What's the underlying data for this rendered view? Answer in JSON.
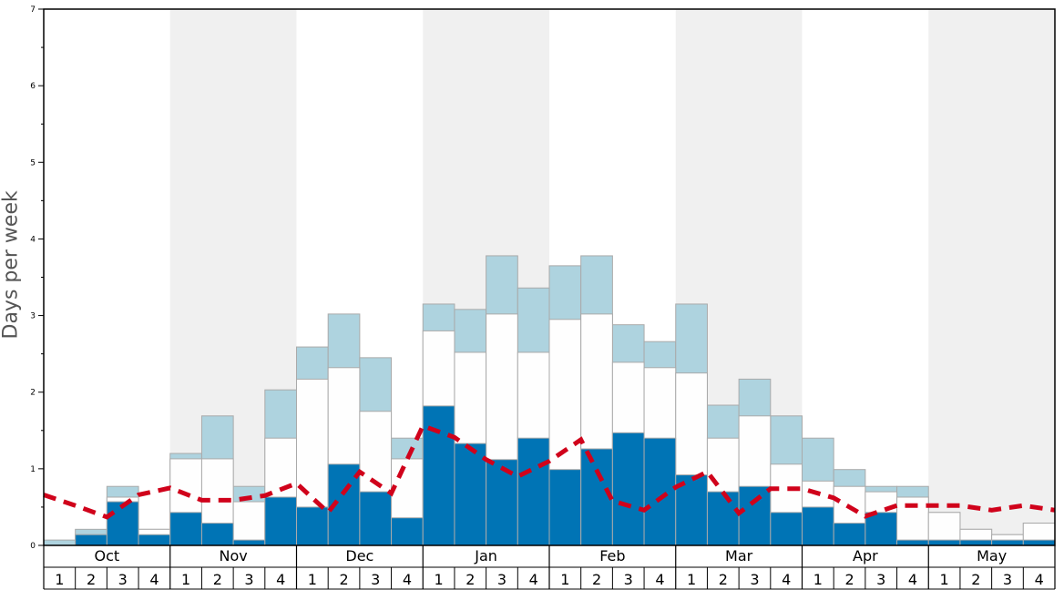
{
  "chart_data": {
    "type": "bar",
    "stacked": true,
    "title": "",
    "xlabel": "",
    "ylabel": "Days per week",
    "ylim": [
      0,
      7
    ],
    "yticks": [
      "0",
      "1",
      "2",
      "3",
      "4",
      "5",
      "6",
      "7"
    ],
    "months": [
      "Oct",
      "Nov",
      "Dec",
      "Jan",
      "Feb",
      "Mar",
      "Apr",
      "May"
    ],
    "weeks": [
      "1",
      "2",
      "3",
      "4"
    ],
    "shaded_months": [
      "Nov",
      "Jan",
      "Mar",
      "May"
    ],
    "series": [
      {
        "name": "dark",
        "color": "#0074b5",
        "values_cumulative_top": [
          0,
          0.14,
          0.57,
          0.14,
          0.43,
          0.29,
          0.07,
          0.63,
          0.5,
          1.06,
          0.7,
          0.36,
          1.82,
          1.33,
          1.12,
          1.4,
          0.99,
          1.26,
          1.47,
          1.4,
          0.92,
          0.7,
          0.77,
          0.43,
          0.5,
          0.29,
          0.43,
          0.07,
          0.07,
          0.07,
          0.07,
          0.07
        ]
      },
      {
        "name": "white",
        "color": "#fefefe",
        "values_cumulative_top": [
          0,
          0.14,
          0.63,
          0.21,
          1.13,
          1.13,
          0.57,
          1.4,
          2.17,
          2.32,
          1.75,
          1.13,
          2.8,
          2.52,
          3.02,
          2.52,
          2.95,
          3.02,
          2.39,
          2.32,
          2.25,
          1.4,
          1.69,
          1.06,
          0.84,
          0.77,
          0.7,
          0.63,
          0.43,
          0.21,
          0.14,
          0.29
        ]
      },
      {
        "name": "light",
        "color": "#aed3df",
        "values_cumulative_top": [
          0.07,
          0.21,
          0.77,
          0.21,
          1.2,
          1.69,
          0.77,
          2.03,
          2.59,
          3.02,
          2.45,
          1.4,
          3.15,
          3.08,
          3.78,
          3.36,
          3.65,
          3.78,
          2.88,
          2.66,
          3.15,
          1.83,
          2.17,
          1.69,
          1.4,
          0.99,
          0.77,
          0.77,
          0.43,
          0.21,
          0.14,
          0.29
        ]
      }
    ],
    "average_line": {
      "color": "#d0021b",
      "style": "dashed",
      "values_at_week_boundaries": [
        0.66,
        0.52,
        0.37,
        0.66,
        0.75,
        0.59,
        0.59,
        0.65,
        0.81,
        0.43,
        0.96,
        0.68,
        1.56,
        1.41,
        1.12,
        0.9,
        1.1,
        1.38,
        0.58,
        0.46,
        0.76,
        0.96,
        0.42,
        0.74,
        0.74,
        0.62,
        0.38,
        0.52,
        0.52,
        0.52,
        0.46,
        0.52,
        0.46
      ]
    }
  }
}
